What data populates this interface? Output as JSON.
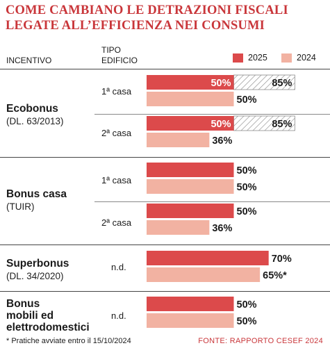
{
  "title_lines": [
    "COME CAMBIANO LE DETRAZIONI FISCALI",
    "LEGATE ALL’EFFICIENZA NEI CONSUMI"
  ],
  "headers": {
    "incentivo": "INCENTIVO",
    "tipo_line1": "TIPO",
    "tipo_line2": "EDIFICIO"
  },
  "legend": [
    {
      "label": "2025",
      "color": "#dc4a4b"
    },
    {
      "label": "2024",
      "color": "#f2b2a2"
    }
  ],
  "groups": [
    {
      "name_lines": [
        "Ecobonus"
      ],
      "sub": "(DL. 63/2013)",
      "rows": [
        {
          "label": "1ª casa",
          "v2025": 50,
          "v2025_future": 85,
          "l2025": "50%",
          "l2025_future": "85%",
          "v2024": 50,
          "l2024": "50%"
        },
        {
          "label": "2ª casa",
          "v2025": 50,
          "v2025_future": 85,
          "l2025": "50%",
          "l2025_future": "85%",
          "v2024": 36,
          "l2024": "36%"
        }
      ]
    },
    {
      "name_lines": [
        "Bonus casa"
      ],
      "sub": "(TUIR)",
      "rows": [
        {
          "label": "1ª casa",
          "v2025": 50,
          "l2025": "50%",
          "v2024": 50,
          "l2024": "50%"
        },
        {
          "label": "2ª casa",
          "v2025": 50,
          "l2025": "50%",
          "v2024": 36,
          "l2024": "36%"
        }
      ]
    },
    {
      "name_lines": [
        "Superbonus"
      ],
      "sub": "(DL. 34/2020)",
      "rows": [
        {
          "label": "n.d.",
          "v2025": 70,
          "l2025": "70%",
          "v2024": 65,
          "l2024": "65%*"
        }
      ]
    },
    {
      "name_lines": [
        "Bonus",
        "mobili ed",
        "elettrodomestici"
      ],
      "sub": "",
      "rows": [
        {
          "label": "n.d.",
          "v2025": 50,
          "l2025": "50%",
          "v2024": 50,
          "l2024": "50%"
        }
      ]
    }
  ],
  "chart_data": {
    "type": "bar",
    "orientation": "horizontal",
    "categories": [
      "Ecobonus (DL. 63/2013) - 1ª casa",
      "Ecobonus (DL. 63/2013) - 2ª casa",
      "Bonus casa (TUIR) - 1ª casa",
      "Bonus casa (TUIR) - 2ª casa",
      "Superbonus (DL. 34/2020) - n.d.",
      "Bonus mobili ed elettrodomestici - n.d."
    ],
    "series": [
      {
        "name": "2025",
        "values": [
          50,
          50,
          50,
          50,
          70,
          50
        ]
      },
      {
        "name": "2024",
        "values": [
          50,
          36,
          50,
          36,
          65,
          50
        ]
      }
    ],
    "hatched_extension_2025": [
      85,
      85,
      null,
      null,
      null,
      null
    ],
    "xlim": [
      0,
      100
    ],
    "grid": false,
    "legend_position": "top-right"
  },
  "footnote": "* Pratiche avviate entro il 15/10/2024",
  "source": "FONTE: RAPPORTO CESEF 2024",
  "colors": {
    "accent": "#c9363a",
    "bar2025": "#dc4a4b",
    "bar2024": "#f2b2a2",
    "hatch": "#8a8a8a"
  }
}
